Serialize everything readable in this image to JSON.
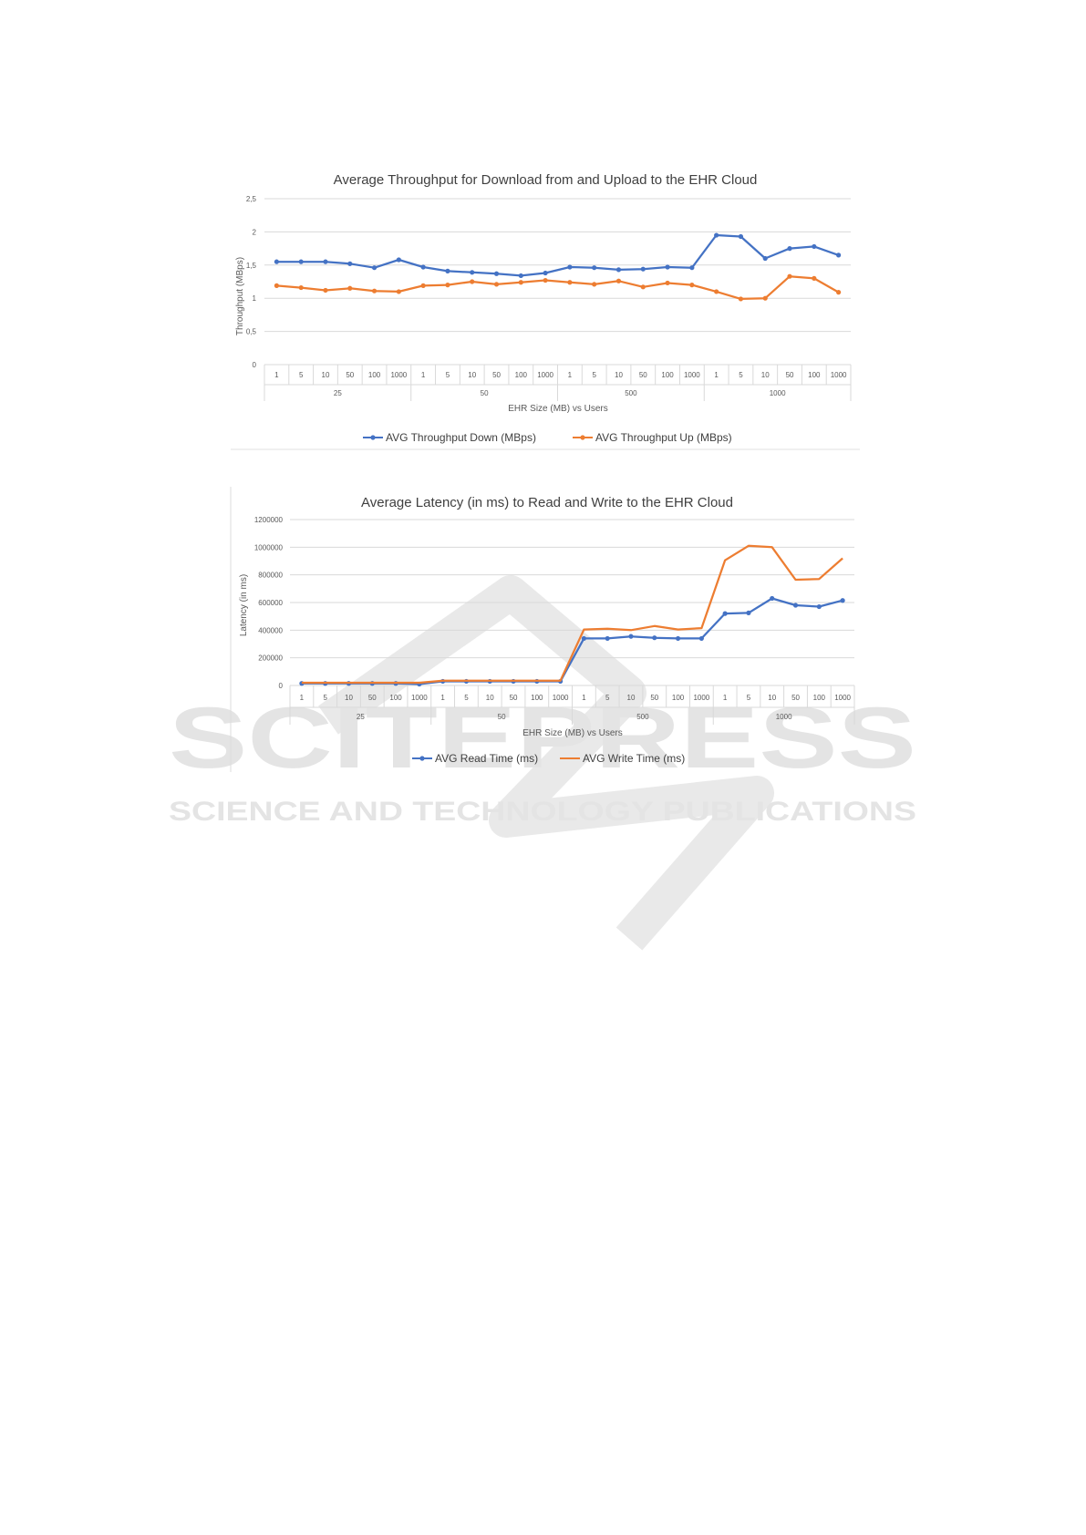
{
  "watermark": {
    "word": "SCITEPRESS",
    "tagline": "SCIENCE AND TECHNOLOGY PUBLICATIONS"
  },
  "chart_data": [
    {
      "type": "line",
      "title": "Average Throughput for Download from and Upload to the EHR Cloud",
      "xlabel": "EHR Size (MB) vs Users",
      "ylabel": "Throughput (MBps)",
      "ylim": [
        0,
        2.5
      ],
      "yticks": [
        "0",
        "0,5",
        "1",
        "1,5",
        "2",
        "2,5"
      ],
      "groups": [
        "25",
        "50",
        "500",
        "1000"
      ],
      "users": [
        "1",
        "5",
        "10",
        "50",
        "100",
        "1000"
      ],
      "grid": true,
      "legend": "bottom",
      "series": [
        {
          "name": "AVG Throughput Down (MBps)",
          "color": "#4472C4",
          "markers": true,
          "values": [
            1.55,
            1.55,
            1.55,
            1.52,
            1.46,
            1.58,
            1.47,
            1.41,
            1.39,
            1.37,
            1.34,
            1.38,
            1.47,
            1.46,
            1.43,
            1.44,
            1.47,
            1.46,
            1.95,
            1.93,
            1.6,
            1.75,
            1.78,
            1.65
          ]
        },
        {
          "name": "AVG Throughput Up (MBps)",
          "color": "#ED7D31",
          "markers": true,
          "values": [
            1.19,
            1.16,
            1.12,
            1.15,
            1.11,
            1.1,
            1.19,
            1.2,
            1.25,
            1.21,
            1.24,
            1.27,
            1.24,
            1.21,
            1.26,
            1.17,
            1.23,
            1.2,
            1.1,
            0.99,
            1.0,
            1.33,
            1.3,
            1.09
          ]
        }
      ]
    },
    {
      "type": "line",
      "title": "Average Latency (in ms) to Read and Write to the EHR Cloud",
      "xlabel": "EHR Size (MB) vs Users",
      "ylabel": "Latency (in ms)",
      "ylim": [
        0,
        1200000
      ],
      "yticks": [
        "0",
        "200000",
        "400000",
        "600000",
        "800000",
        "1000000",
        "1200000"
      ],
      "groups": [
        "25",
        "50",
        "500",
        "1000"
      ],
      "users": [
        "1",
        "5",
        "10",
        "50",
        "100",
        "1000"
      ],
      "grid": true,
      "legend": "bottom",
      "series": [
        {
          "name": "AVG Read Time (ms)",
          "color": "#4472C4",
          "markers": true,
          "values": [
            15000,
            15000,
            15000,
            15000,
            15000,
            10000,
            30000,
            30000,
            30000,
            30000,
            30000,
            30000,
            340000,
            340000,
            355000,
            345000,
            340000,
            340000,
            520000,
            525000,
            630000,
            580000,
            570000,
            615000
          ]
        },
        {
          "name": "AVG Write Time (ms)",
          "color": "#ED7D31",
          "markers": false,
          "values": [
            20000,
            20000,
            20000,
            20000,
            20000,
            20000,
            35000,
            35000,
            35000,
            35000,
            35000,
            35000,
            405000,
            410000,
            400000,
            430000,
            405000,
            415000,
            905000,
            1010000,
            1000000,
            765000,
            770000,
            920000
          ]
        }
      ]
    }
  ]
}
